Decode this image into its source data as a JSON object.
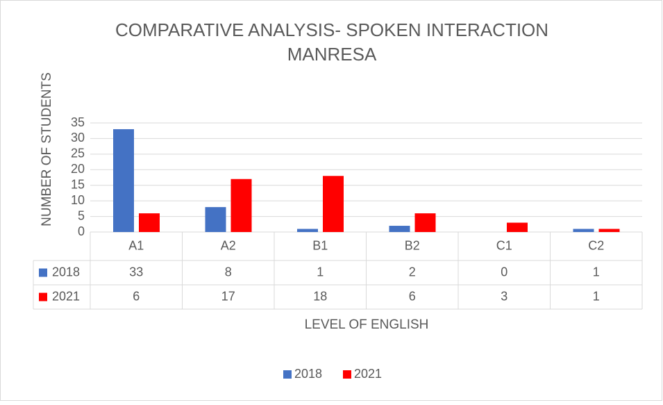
{
  "chart_data": {
    "type": "bar",
    "title": [
      "COMPARATIVE ANALYSIS- SPOKEN INTERACTION",
      "MANRESA"
    ],
    "xlabel": "LEVEL OF ENGLISH",
    "ylabel": "NUMBER OF STUDENTS",
    "categories": [
      "A1",
      "A2",
      "B1",
      "B2",
      "C1",
      "C2"
    ],
    "series": [
      {
        "name": "2018",
        "color": "#4472c4",
        "values": [
          33,
          8,
          1,
          2,
          0,
          1
        ]
      },
      {
        "name": "2021",
        "color": "#ff0000",
        "values": [
          6,
          17,
          18,
          6,
          3,
          1
        ]
      }
    ],
    "ylim": [
      0,
      35
    ],
    "yticks": [
      0,
      5,
      10,
      15,
      20,
      25,
      30,
      35
    ],
    "grid": true,
    "legend": "bottom"
  }
}
